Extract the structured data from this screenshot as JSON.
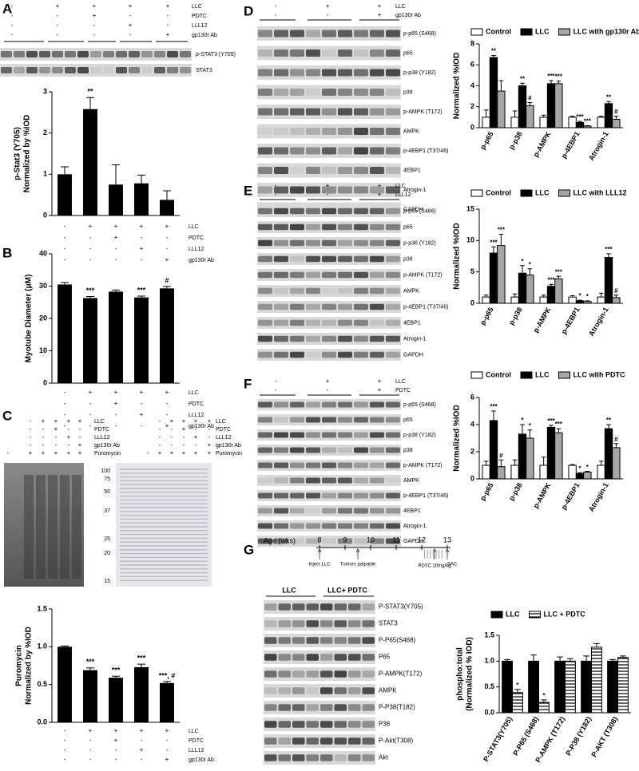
{
  "panels": {
    "A": {
      "letter": "A",
      "conditions": [
        {
          "name": "LLC",
          "signs": [
            "-",
            "+",
            "+",
            "+",
            "+"
          ]
        },
        {
          "name": "PDTC",
          "signs": [
            "-",
            "-",
            "+",
            "-",
            "-"
          ]
        },
        {
          "name": "LLL12",
          "signs": [
            "-",
            "-",
            "-",
            "+",
            "-"
          ]
        },
        {
          "name": "gp130r Ab",
          "signs": [
            "-",
            "-",
            "-",
            "-",
            "+"
          ]
        }
      ],
      "blots": [
        "p-STAT3 (Y705)",
        "STAT3"
      ]
    },
    "B": {
      "letter": "B"
    },
    "C": {
      "letter": "C",
      "conditions": [
        {
          "name": "LLC",
          "signs": [
            null,
            "-",
            "+",
            "+",
            "+",
            "+"
          ]
        },
        {
          "name": "PDTC",
          "signs": [
            null,
            "-",
            "-",
            "+",
            "-",
            "-"
          ]
        },
        {
          "name": "LLL12",
          "signs": [
            null,
            "-",
            "-",
            "-",
            "+",
            "-"
          ]
        },
        {
          "name": "gp130r Ab",
          "signs": [
            null,
            "-",
            "-",
            "-",
            "-",
            "+"
          ]
        },
        {
          "name": "Puromycin",
          "signs": [
            "-",
            "+",
            "+",
            "+",
            "+",
            "+"
          ]
        }
      ],
      "markers": [
        100,
        75,
        50,
        37,
        25,
        20,
        15
      ]
    },
    "D": {
      "letter": "D",
      "conditions": [
        {
          "name": "LLC",
          "signs": [
            "-",
            "+",
            "+"
          ]
        },
        {
          "name": "gp130r Ab",
          "signs": [
            "-",
            "-",
            "+"
          ]
        }
      ],
      "blots": [
        "p-p65 (S468)",
        "p65",
        "p-p38 (Y182)",
        "p38",
        "p-AMPK (T172)",
        "AMPK",
        "p-4EBP1 (T37/46)",
        "4EBP1",
        "Atrogin-1",
        "GAPDH"
      ]
    },
    "E": {
      "letter": "E",
      "conditions": [
        {
          "name": "LLC",
          "signs": [
            "-",
            "+",
            "+"
          ]
        },
        {
          "name": "LLL12",
          "signs": [
            "-",
            "-",
            "+"
          ]
        }
      ],
      "blots": [
        "p-p65 (S468)",
        "p65",
        "p-p38 (Y182)",
        "p38",
        "p-AMPK (T172)",
        "AMPK",
        "p-4EBP1 (T37/46)",
        "4EBP1",
        "Atrogin-1",
        "GAPDH"
      ]
    },
    "F": {
      "letter": "F",
      "conditions": [
        {
          "name": "LLC",
          "signs": [
            "-",
            "+",
            "+"
          ]
        },
        {
          "name": "PDTC",
          "signs": [
            "-",
            "-",
            "+"
          ]
        }
      ],
      "blots": [
        "p-p65 (S468)",
        "p65",
        "p-p38 (Y182)",
        "p38",
        "p-AMPK (T172)",
        "AMPK",
        "p-4EBP1 (T37/46)",
        "4EBP1",
        "Atrogin-1",
        "GAPDH"
      ]
    },
    "G": {
      "letter": "G",
      "timeline": {
        "label": "Age (wks)",
        "weeks": [
          8,
          9,
          10,
          11,
          12,
          13
        ],
        "events": [
          {
            "label": "Inject LLC",
            "week": 8
          },
          {
            "label": "Tumors palpable",
            "week": 9.5
          },
          {
            "label": "PDTC 10mg/kg",
            "week": 12.5
          },
          {
            "label": "SAC",
            "week": 13
          }
        ]
      },
      "groups": [
        "LLC",
        "LLC+ PDTC"
      ],
      "blots": [
        "P-STAT3(Y705)",
        "STAT3",
        "P-P65(S468)",
        "P65",
        "P-AMPK(T172)",
        "AMPK",
        "P-P38(T182)",
        "P38",
        "P-Akt(T308)",
        "Akt"
      ]
    }
  },
  "chart_data": [
    {
      "type": "bar",
      "ylabel": [
        "p-Stat3 (Y705)",
        "Normalized by %IOD"
      ],
      "values": [
        1.0,
        2.58,
        0.75,
        0.78,
        0.38
      ],
      "errors": [
        0.18,
        0.28,
        0.48,
        0.2,
        0.22
      ],
      "annotations": [
        null,
        "**",
        null,
        null,
        null
      ],
      "color": "#000000",
      "ylim": [
        0,
        3
      ],
      "yticks": [
        0,
        1,
        2,
        3
      ],
      "conditions": [
        {
          "name": "LLC",
          "signs": [
            "-",
            "+",
            "+",
            "+",
            "+"
          ]
        },
        {
          "name": "PDTC",
          "signs": [
            "-",
            "-",
            "+",
            "-",
            "-"
          ]
        },
        {
          "name": "LLL12",
          "signs": [
            "-",
            "-",
            "-",
            "+",
            "-"
          ]
        },
        {
          "name": "gp130r Ab",
          "signs": [
            "-",
            "-",
            "-",
            "-",
            "+"
          ]
        }
      ]
    },
    {
      "type": "bar",
      "ylabel": [
        "Myotube Diameter (μM)"
      ],
      "values": [
        30.5,
        26.3,
        28.3,
        26.5,
        29.3
      ],
      "errors": [
        0.6,
        0.5,
        0.5,
        0.4,
        0.6
      ],
      "annotations": [
        null,
        "***",
        null,
        "***",
        "#"
      ],
      "color": "#000000",
      "ylim": [
        0,
        40
      ],
      "yticks": [
        0,
        10,
        20,
        30,
        40
      ],
      "conditions": [
        {
          "name": "LLC",
          "signs": [
            "-",
            "+",
            "+",
            "+",
            "+"
          ]
        },
        {
          "name": "PDTC",
          "signs": [
            "-",
            "-",
            "+",
            "-",
            "-"
          ]
        },
        {
          "name": "LLL12",
          "signs": [
            "-",
            "-",
            "-",
            "+",
            "-"
          ]
        },
        {
          "name": "gp130r Ab",
          "signs": [
            "-",
            "-",
            "-",
            "-",
            "+"
          ]
        }
      ]
    },
    {
      "type": "bar",
      "ylabel": [
        "Puromycin",
        "Normalized by %IOD"
      ],
      "values": [
        1.0,
        0.69,
        0.59,
        0.73,
        0.52
      ],
      "errors": [
        0.01,
        0.03,
        0.02,
        0.04,
        0.02
      ],
      "annotations": [
        null,
        "***",
        "***",
        "***",
        "***, #"
      ],
      "color": "#000000",
      "ylim": [
        0,
        1.5
      ],
      "yticks": [
        {
          "value": 0,
          "label": "0.0"
        },
        0.5,
        {
          "value": 1,
          "label": "1.0"
        },
        1.5
      ],
      "conditions": [
        {
          "name": "LLC",
          "signs": [
            "-",
            "+",
            "+",
            "+",
            "+"
          ]
        },
        {
          "name": "PDTC",
          "signs": [
            "-",
            "-",
            "+",
            "-",
            "-"
          ]
        },
        {
          "name": "LLL12",
          "signs": [
            "-",
            "-",
            "-",
            "+",
            "-"
          ]
        },
        {
          "name": "gp130r Ab",
          "signs": [
            "-",
            "-",
            "-",
            "-",
            "+"
          ]
        }
      ]
    },
    {
      "type": "grouped-bar",
      "ylabel": [
        "Normalized %IOD"
      ],
      "categories": [
        "p-p65",
        "p-p38",
        "p-AMPK",
        "p-4EBP1",
        "Atrogin-1"
      ],
      "ylim": [
        0,
        8
      ],
      "yticks": [
        0,
        2,
        4,
        6,
        8
      ],
      "legend": "top",
      "series": [
        {
          "name": "Control",
          "color": "#ffffff",
          "values": [
            1,
            1,
            1,
            1,
            1
          ],
          "errors": [
            0.7,
            0.6,
            0.2,
            0.1,
            0.1
          ],
          "annotations": [
            null,
            null,
            null,
            null,
            null
          ]
        },
        {
          "name": "LLC",
          "color": "#000000",
          "values": [
            6.7,
            4.0,
            4.2,
            0.5,
            2.3
          ],
          "errors": [
            0.2,
            0.25,
            0.3,
            0.1,
            0.2
          ],
          "annotations": [
            "**",
            "**",
            "***",
            "***",
            "**"
          ]
        },
        {
          "name": "LLC with gp130r Ab",
          "color": "#a6a6a6",
          "values": [
            3.5,
            2.1,
            4.2,
            0.15,
            0.8
          ],
          "errors": [
            1.0,
            0.3,
            0.25,
            0.05,
            0.3
          ],
          "annotations": [
            null,
            "#",
            "***",
            "***",
            "#"
          ]
        }
      ]
    },
    {
      "type": "grouped-bar",
      "ylabel": [
        "Normalized %IOD"
      ],
      "categories": [
        "p-p65",
        "p-p38",
        "p-AMPK",
        "p-4EBP1",
        "Atrogin-1"
      ],
      "ylim": [
        0,
        15
      ],
      "yticks": [
        0,
        5,
        10,
        15
      ],
      "legend": "top",
      "series": [
        {
          "name": "Control",
          "color": "#ffffff",
          "values": [
            1,
            1,
            1,
            1,
            1
          ],
          "errors": [
            0.3,
            0.5,
            0.3,
            0.2,
            0.6
          ],
          "annotations": [
            null,
            null,
            null,
            null,
            null
          ]
        },
        {
          "name": "LLC",
          "color": "#000000",
          "values": [
            8,
            4.8,
            2.7,
            0.4,
            7.3
          ],
          "errors": [
            1,
            1.2,
            0.3,
            0.1,
            0.6
          ],
          "annotations": [
            "***",
            "*",
            "***",
            "*",
            "***"
          ]
        },
        {
          "name": "LLC with LLL12",
          "color": "#a6a6a6",
          "values": [
            9.2,
            4.5,
            3.9,
            0.3,
            0.9
          ],
          "errors": [
            1.8,
            1,
            0.4,
            0.1,
            0.4
          ],
          "annotations": [
            "***",
            "*",
            "***",
            "*",
            "#"
          ]
        }
      ]
    },
    {
      "type": "grouped-bar",
      "ylabel": [
        "Normalized %IOD"
      ],
      "categories": [
        "p-p65",
        "p-p38",
        "p-AMPK",
        "p-4EBP1",
        "Atrogin-1"
      ],
      "ylim": [
        0,
        6
      ],
      "yticks": [
        0,
        2,
        4,
        6
      ],
      "legend": "top",
      "series": [
        {
          "name": "Control",
          "color": "#ffffff",
          "values": [
            1,
            1,
            1,
            1,
            1
          ],
          "errors": [
            0.3,
            0.4,
            0.6,
            0.05,
            0.3
          ],
          "annotations": [
            null,
            null,
            null,
            null,
            null
          ]
        },
        {
          "name": "LLC",
          "color": "#000000",
          "values": [
            4.3,
            3.3,
            3.8,
            0.4,
            3.7
          ],
          "errors": [
            0.7,
            0.7,
            0.15,
            0.05,
            0.3
          ],
          "annotations": [
            "***",
            "*",
            "***",
            "*",
            "**"
          ]
        },
        {
          "name": "LLC with PDTC",
          "color": "#a6a6a6",
          "values": [
            0.9,
            3.0,
            3.4,
            0.5,
            2.3
          ],
          "errors": [
            0.5,
            0.6,
            0.3,
            0.05,
            0.3
          ],
          "annotations": [
            "#",
            "*",
            "***",
            "*",
            "#"
          ]
        }
      ]
    },
    {
      "type": "grouped-bar",
      "ylabel": [
        "phospho:total",
        "(Normalized % IOD)"
      ],
      "categories": [
        "P-STAT3(Y705)",
        "P-P65 (S468)",
        "P-AMPK (T172)",
        "P-P38 (Y182)",
        "P-AKT (T308)"
      ],
      "ylim": [
        0,
        1.5
      ],
      "yticks": [
        {
          "value": 0,
          "label": "0.0"
        },
        0.5,
        {
          "value": 1,
          "label": "1.0"
        },
        1.5
      ],
      "legend": "top",
      "series": [
        {
          "name": "LLC",
          "color": "#000000",
          "values": [
            1,
            1,
            1,
            1,
            1
          ],
          "errors": [
            0.03,
            0.12,
            0.08,
            0.1,
            0.03
          ],
          "annotations": [
            null,
            null,
            null,
            null,
            null
          ]
        },
        {
          "name": "LLC + PDTC",
          "color": "#ffffff",
          "hatch": true,
          "values": [
            0.39,
            0.2,
            1.0,
            1.27,
            1.07
          ],
          "errors": [
            0.06,
            0.05,
            0.05,
            0.07,
            0.03
          ],
          "annotations": [
            "*",
            "*",
            null,
            null,
            null
          ]
        }
      ]
    }
  ]
}
